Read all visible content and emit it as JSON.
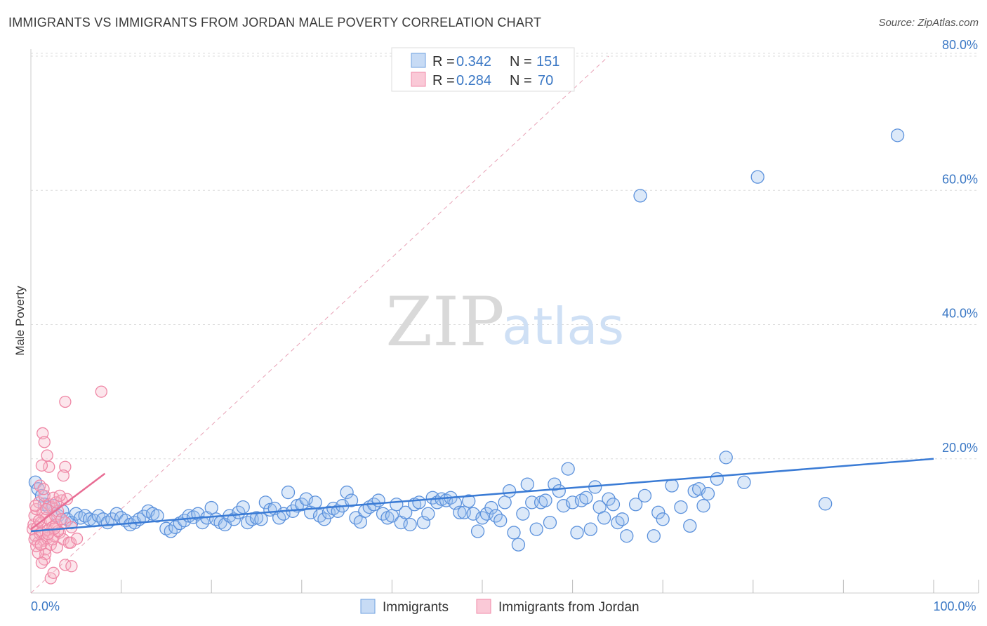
{
  "title": "IMMIGRANTS VS IMMIGRANTS FROM JORDAN MALE POVERTY CORRELATION CHART",
  "source": "Source: ZipAtlas.com",
  "watermark": {
    "zip": "ZIP",
    "atlas": "atlas"
  },
  "colors": {
    "blue": "#6fa0e0",
    "blue_line": "#3a7bd5",
    "pink": "#f08aa8",
    "pink_line": "#e86d94",
    "axis_text": "#3b78c5"
  },
  "chart_data": {
    "type": "scatter",
    "xlabel": "",
    "ylabel": "Male Poverty",
    "xlim": [
      0,
      100
    ],
    "ylim": [
      0,
      80
    ],
    "y_ticks": [
      {
        "value": 20,
        "label": "20.0%"
      },
      {
        "value": 40,
        "label": "40.0%"
      },
      {
        "value": 60,
        "label": "60.0%"
      },
      {
        "value": 80,
        "label": "80.0%"
      }
    ],
    "x_tick_labels": [
      {
        "value": 0,
        "label": "0.0%"
      },
      {
        "value": 100,
        "label": "100.0%"
      }
    ],
    "x_minor_ticks": [
      10,
      20,
      30,
      40,
      50,
      60,
      70,
      80,
      90,
      100
    ],
    "legend": {
      "rows": [
        {
          "r_label": "R = ",
          "r_value": "0.342",
          "n_label": "N = ",
          "n_value": "151"
        },
        {
          "r_label": "R = ",
          "r_value": "0.284",
          "n_label": "N = ",
          "n_value": "70"
        }
      ]
    },
    "series": [
      {
        "name": "Immigrants",
        "trend": {
          "x0": 0,
          "y0": 9.2,
          "x1": 100,
          "y1": 20.0
        },
        "points": [
          [
            0.5,
            16.5
          ],
          [
            0.8,
            15.5
          ],
          [
            1.2,
            14.5
          ],
          [
            1.5,
            13.2
          ],
          [
            2,
            12.8
          ],
          [
            2.5,
            13
          ],
          [
            3,
            11.5
          ],
          [
            3.5,
            12.2
          ],
          [
            4,
            11
          ],
          [
            4.5,
            10.5
          ],
          [
            5,
            11.8
          ],
          [
            5.5,
            11.2
          ],
          [
            6,
            11.5
          ],
          [
            6.5,
            11
          ],
          [
            7,
            10.8
          ],
          [
            7.5,
            11.5
          ],
          [
            8,
            11
          ],
          [
            8.5,
            10.5
          ],
          [
            9,
            11
          ],
          [
            9.5,
            11.8
          ],
          [
            10,
            11.2
          ],
          [
            10.5,
            10.8
          ],
          [
            11,
            10.2
          ],
          [
            11.5,
            10.5
          ],
          [
            12,
            11
          ],
          [
            12.5,
            11.4
          ],
          [
            13,
            12.2
          ],
          [
            13.5,
            11.8
          ],
          [
            14,
            11.5
          ],
          [
            15,
            9.6
          ],
          [
            15.5,
            9.2
          ],
          [
            16,
            9.8
          ],
          [
            16.5,
            10.4
          ],
          [
            17,
            10.8
          ],
          [
            17.5,
            11.5
          ],
          [
            18,
            11.3
          ],
          [
            18.5,
            11.8
          ],
          [
            19,
            10.5
          ],
          [
            19.5,
            11.2
          ],
          [
            20,
            12.7
          ],
          [
            20.5,
            11
          ],
          [
            21,
            10.5
          ],
          [
            21.5,
            10.2
          ],
          [
            22,
            11.5
          ],
          [
            22.5,
            11
          ],
          [
            23,
            12
          ],
          [
            23.5,
            12.8
          ],
          [
            24,
            10.5
          ],
          [
            24.5,
            11
          ],
          [
            25,
            11.2
          ],
          [
            25.5,
            11
          ],
          [
            26,
            13.5
          ],
          [
            26.5,
            12.4
          ],
          [
            27,
            12.6
          ],
          [
            27.5,
            11.2
          ],
          [
            28,
            11.8
          ],
          [
            28.5,
            15
          ],
          [
            29,
            12.2
          ],
          [
            29.5,
            13
          ],
          [
            30,
            13.2
          ],
          [
            30.5,
            14
          ],
          [
            31,
            12
          ],
          [
            31.5,
            13.5
          ],
          [
            32,
            11.5
          ],
          [
            32.5,
            11
          ],
          [
            33,
            12
          ],
          [
            33.5,
            12.6
          ],
          [
            34,
            12.2
          ],
          [
            34.5,
            13
          ],
          [
            35,
            15
          ],
          [
            35.5,
            13.8
          ],
          [
            36,
            11.2
          ],
          [
            36.5,
            10.6
          ],
          [
            37,
            12.2
          ],
          [
            37.5,
            12.8
          ],
          [
            38,
            13.2
          ],
          [
            38.5,
            13.8
          ],
          [
            39,
            11.8
          ],
          [
            39.5,
            11.2
          ],
          [
            40,
            11.5
          ],
          [
            40.5,
            13.2
          ],
          [
            41,
            10.5
          ],
          [
            41.5,
            12
          ],
          [
            42,
            10.2
          ],
          [
            42.5,
            13.2
          ],
          [
            43,
            13.5
          ],
          [
            43.5,
            10.5
          ],
          [
            44,
            11.8
          ],
          [
            44.5,
            14.2
          ],
          [
            45,
            13.5
          ],
          [
            45.5,
            14
          ],
          [
            46,
            13.8
          ],
          [
            46.5,
            14.2
          ],
          [
            47,
            13.4
          ],
          [
            47.5,
            12
          ],
          [
            48,
            12
          ],
          [
            48.5,
            13.7
          ],
          [
            49,
            11.8
          ],
          [
            49.5,
            9.2
          ],
          [
            50,
            11.2
          ],
          [
            50.5,
            11.8
          ],
          [
            51,
            12.7
          ],
          [
            51.5,
            11.5
          ],
          [
            52,
            10.8
          ],
          [
            52.5,
            13.5
          ],
          [
            53,
            15.2
          ],
          [
            53.5,
            9
          ],
          [
            54,
            7.2
          ],
          [
            54.5,
            11.8
          ],
          [
            55,
            16.2
          ],
          [
            55.5,
            13.5
          ],
          [
            56,
            9.5
          ],
          [
            56.5,
            13.5
          ],
          [
            57,
            13.8
          ],
          [
            57.5,
            10.5
          ],
          [
            58,
            16.2
          ],
          [
            58.5,
            15.2
          ],
          [
            59,
            13
          ],
          [
            59.5,
            18.5
          ],
          [
            60,
            13.5
          ],
          [
            60.5,
            9
          ],
          [
            61,
            13.8
          ],
          [
            61.5,
            14.2
          ],
          [
            62,
            9.5
          ],
          [
            62.5,
            15.8
          ],
          [
            63,
            12.8
          ],
          [
            63.5,
            11.2
          ],
          [
            64,
            14
          ],
          [
            64.5,
            13.2
          ],
          [
            65,
            10.5
          ],
          [
            65.5,
            11
          ],
          [
            66,
            8.5
          ],
          [
            67,
            13.2
          ],
          [
            68,
            14.5
          ],
          [
            69,
            8.5
          ],
          [
            69.5,
            12
          ],
          [
            70,
            11
          ],
          [
            71,
            16
          ],
          [
            72,
            12.8
          ],
          [
            73,
            10
          ],
          [
            73.5,
            15.2
          ],
          [
            74,
            15.5
          ],
          [
            74.5,
            13
          ],
          [
            75,
            14.8
          ],
          [
            76,
            17
          ],
          [
            77,
            20.2
          ],
          [
            79,
            16.5
          ],
          [
            88,
            13.3
          ],
          [
            67.5,
            59.2
          ],
          [
            80.5,
            62
          ],
          [
            96,
            68.2
          ]
        ]
      },
      {
        "name": "Immigrants from Jordan",
        "trend": {
          "x0": 0,
          "y0": 9.5,
          "x1": 8.2,
          "y1": 17.8
        },
        "points": [
          [
            0.2,
            9.5
          ],
          [
            0.3,
            10.2
          ],
          [
            0.4,
            11.5
          ],
          [
            0.5,
            8.5
          ],
          [
            0.6,
            12.5
          ],
          [
            0.7,
            9.8
          ],
          [
            0.8,
            7.5
          ],
          [
            0.9,
            13.5
          ],
          [
            1,
            8.8
          ],
          [
            1.1,
            10.5
          ],
          [
            1.2,
            9
          ],
          [
            1.3,
            12
          ],
          [
            1.4,
            7.8
          ],
          [
            1.5,
            14.5
          ],
          [
            1.6,
            6.5
          ],
          [
            1.7,
            11.2
          ],
          [
            1.8,
            8.2
          ],
          [
            1.9,
            9.4
          ],
          [
            2,
            13.2
          ],
          [
            2.1,
            10.8
          ],
          [
            2.2,
            7.2
          ],
          [
            2.3,
            12.8
          ],
          [
            2.4,
            9.8
          ],
          [
            2.5,
            14.2
          ],
          [
            2.6,
            8.5
          ],
          [
            2.7,
            11.5
          ],
          [
            2.8,
            10.2
          ],
          [
            2.9,
            6.8
          ],
          [
            3,
            12.2
          ],
          [
            3.2,
            9
          ],
          [
            3.4,
            13.8
          ],
          [
            3.6,
            8
          ],
          [
            3.8,
            10.5
          ],
          [
            4,
            14
          ],
          [
            4.2,
            7.5
          ],
          [
            4.5,
            9.8
          ],
          [
            1.3,
            23.8
          ],
          [
            1.5,
            22.5
          ],
          [
            1.8,
            20.5
          ],
          [
            2,
            18.8
          ],
          [
            1.2,
            19
          ],
          [
            3.8,
            18.8
          ],
          [
            3.6,
            17.5
          ],
          [
            3.8,
            28.5
          ],
          [
            7.8,
            30
          ],
          [
            1.5,
            5
          ],
          [
            1.6,
            5.8
          ],
          [
            2.2,
            2.2
          ],
          [
            2.5,
            3
          ],
          [
            3.8,
            4.2
          ],
          [
            4.5,
            4
          ],
          [
            1.2,
            4.5
          ],
          [
            0.8,
            6
          ],
          [
            0.6,
            7
          ],
          [
            0.4,
            8
          ],
          [
            1,
            16
          ],
          [
            1.4,
            15.5
          ],
          [
            2.4,
            8
          ],
          [
            3,
            9.2
          ],
          [
            2.8,
            13.5
          ],
          [
            3.4,
            11
          ],
          [
            4.4,
            7.5
          ],
          [
            5.1,
            8.1
          ],
          [
            0.9,
            10.8
          ],
          [
            1.7,
            12.5
          ],
          [
            2.6,
            9.6
          ],
          [
            0.5,
            13
          ],
          [
            1.1,
            7.2
          ],
          [
            3.2,
            14.5
          ],
          [
            1.9,
            8.8
          ]
        ]
      }
    ]
  }
}
